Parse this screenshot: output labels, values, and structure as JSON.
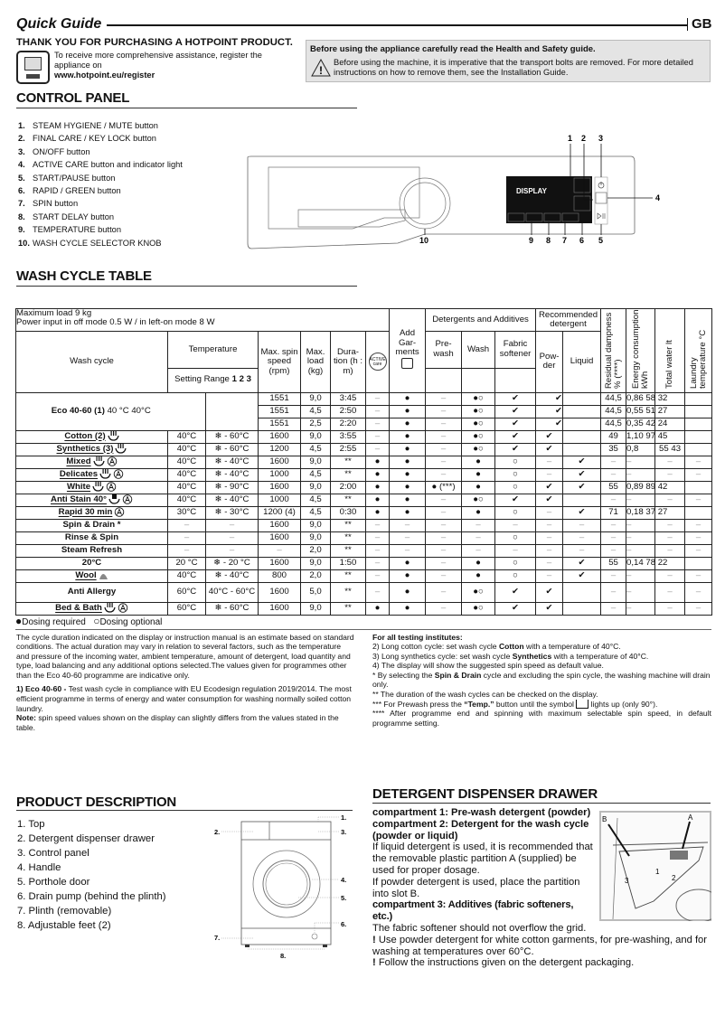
{
  "header": {
    "title": "Quick Guide",
    "lang": "GB"
  },
  "intro": {
    "thanks": "THANK YOU FOR PURCHASING A HOTPOINT PRODUCT.",
    "register_text": "To receive more comprehensive assistance, register the appliance on",
    "register_url": "www.hotpoint.eu/register"
  },
  "warning": {
    "title": "Before using the appliance carefully read the Health and Safety guide.",
    "text": "Before using the machine, it is imperative that the transport bolts are removed. For more detailed instructions on how to remove them, see the Installation Guide."
  },
  "control_panel": {
    "heading": "CONTROL PANEL",
    "items": [
      {
        "num": "1.",
        "label": "STEAM HYGIENE / MUTE button"
      },
      {
        "num": "2.",
        "label": "FINAL CARE / KEY LOCK button"
      },
      {
        "num": "3.",
        "label": "ON/OFF button"
      },
      {
        "num": "4.",
        "label": "ACTIVE CARE button and indicator light"
      },
      {
        "num": "5.",
        "label": "START/PAUSE button"
      },
      {
        "num": "6.",
        "label": "RAPID / GREEN button"
      },
      {
        "num": "7.",
        "label": "SPIN button"
      },
      {
        "num": "8.",
        "label": "START DELAY button"
      },
      {
        "num": "9.",
        "label": "TEMPERATURE button"
      },
      {
        "num": "10.",
        "label": "WASH CYCLE SELECTOR KNOB"
      }
    ],
    "display_label": "DISPLAY",
    "callouts": [
      "1",
      "2",
      "3",
      "4",
      "5",
      "6",
      "7",
      "8",
      "9",
      "10"
    ]
  },
  "wash_table": {
    "heading": "WASH CYCLE TABLE",
    "max_load": "Maximum load 9 kg",
    "power": "Power input in off  mode 0.5 W / in left-on mode 8 W",
    "headers": {
      "wash_cycle": "Wash cycle",
      "temperature": "Temperature",
      "setting_range": "Setting Range",
      "range_nums": "1 2 3",
      "spin": "Max. spin speed (rpm)",
      "load": "Max. load (kg)",
      "duration": "Dura- tion (h : m)",
      "active_care": "ACTIVE care",
      "add_garments": "Add Gar- ments",
      "detergents": "Detergents and Additives",
      "prewash": "Pre- wash",
      "wash": "Wash",
      "softener": "Fabric softener",
      "recommended": "Recommended detergent",
      "powder": "Pow- der",
      "liquid": "Liquid",
      "residual": "Residual dampness % (****)",
      "energy": "Energy consumption kWh",
      "water": "Total water lt",
      "laundry_temp": "Laundry temperature °C"
    },
    "eco": {
      "name": "Eco 40-60 (1)",
      "temps": "40 °C 40°C",
      "subrows": [
        [
          "1551",
          "9,0",
          "3:45",
          "–",
          "●",
          "–",
          "●○",
          "✔",
          "✔",
          "",
          "44,5",
          "0,86 58 32",
          "",
          ""
        ],
        [
          "1551",
          "4,5",
          "2:50",
          "–",
          "●",
          "–",
          "●○",
          "✔",
          "✔",
          "",
          "44,5",
          "0,55 51 27",
          "",
          ""
        ],
        [
          "1551",
          "2,5",
          "2:20",
          "–",
          "●",
          "–",
          "●○",
          "✔",
          "✔",
          "",
          "44,5",
          "0,35 42 24",
          "",
          ""
        ]
      ]
    },
    "rows": [
      {
        "name": "Cotton (2)",
        "icons": [
          "cotton-icon"
        ],
        "cells": [
          "40°C",
          "❄ - 60°C",
          "1600",
          "9,0",
          "3:55",
          "–",
          "●",
          "–",
          "●○",
          "✔",
          "✔",
          "",
          "49",
          "1,10 97 45",
          "",
          ""
        ]
      },
      {
        "name": "Synthetics (3)",
        "icons": [
          "synthetics-icon"
        ],
        "cells": [
          "40°C",
          "❄ - 60°C",
          "1200",
          "4,5",
          "2:55",
          "–",
          "●",
          "–",
          "●○",
          "✔",
          "✔",
          "",
          "35",
          "0,8",
          "55 43",
          ""
        ]
      },
      {
        "name": "Mixed",
        "icons": [
          "cotton-icon",
          "auto-icon"
        ],
        "cells": [
          "40°C",
          "❄ - 40°C",
          "1600",
          "9,0",
          "**",
          "●",
          "●",
          "–",
          "●",
          "○",
          "–",
          "✔",
          "–",
          "–",
          "–",
          "–"
        ]
      },
      {
        "name": "Delicates",
        "icons": [
          "cotton-icon",
          "auto-icon"
        ],
        "cells": [
          "40°C",
          "❄ - 40°C",
          "1000",
          "4,5",
          "**",
          "●",
          "●",
          "–",
          "●",
          "○",
          "–",
          "✔",
          "–",
          "–",
          "–",
          "–"
        ]
      },
      {
        "name": "White",
        "icons": [
          "cotton-icon",
          "auto-icon"
        ],
        "cells": [
          "40°C",
          "❄ - 90°C",
          "1600",
          "9,0",
          "2:00",
          "●",
          "●",
          "● (***)",
          "●",
          "○",
          "✔",
          "✔",
          "55",
          "0,89 89 42",
          "",
          ""
        ]
      },
      {
        "name": "Anti Stain 40°",
        "icons": [
          "stain-icon",
          "auto-icon"
        ],
        "cells": [
          "40°C",
          "❄ - 40°C",
          "1000",
          "4,5",
          "**",
          "●",
          "●",
          "–",
          "●○",
          "✔",
          "✔",
          "",
          "–",
          "–",
          "–",
          "–"
        ]
      },
      {
        "name": "Rapid 30 min",
        "icons": [
          "auto-icon"
        ],
        "cells": [
          "30°C",
          "❄ - 30°C",
          "1200 (4)",
          "4,5",
          "0:30",
          "●",
          "●",
          "–",
          "●",
          "○",
          "–",
          "✔",
          "71",
          "0,18 37 27",
          "",
          ""
        ]
      },
      {
        "name": "Spin & Drain *",
        "icons": [],
        "cells": [
          "–",
          "–",
          "1600",
          "9,0",
          "**",
          "–",
          "–",
          "–",
          "–",
          "–",
          "–",
          "–",
          "–",
          "–",
          "–",
          "–"
        ]
      },
      {
        "name": "Rinse & Spin",
        "icons": [],
        "cells": [
          "–",
          "–",
          "1600",
          "9,0",
          "**",
          "–",
          "–",
          "–",
          "–",
          "○",
          "–",
          "–",
          "–",
          "–",
          "–",
          "–"
        ]
      },
      {
        "name": "Steam Refresh",
        "icons": [],
        "cells": [
          "–",
          "–",
          "–",
          "2,0",
          "**",
          "–",
          "–",
          "–",
          "–",
          "–",
          "–",
          "–",
          "–",
          "–",
          "–",
          "–"
        ]
      },
      {
        "name": "20°C",
        "icons": [],
        "cells": [
          "20 °C",
          "❄ - 20 °C",
          "1600",
          "9,0",
          "1:50",
          "–",
          "●",
          "–",
          "●",
          "○",
          "–",
          "✔",
          "55",
          "0,14 78 22",
          "",
          ""
        ]
      },
      {
        "name": "Wool",
        "icons": [
          "wool-icon"
        ],
        "cells": [
          "40°C",
          "❄ - 40°C",
          "800",
          "2,0",
          "**",
          "–",
          "●",
          "–",
          "●",
          "○",
          "–",
          "✔",
          "–",
          "–",
          "–",
          "–"
        ]
      },
      {
        "name": "Anti Allergy",
        "icons": [],
        "cells": [
          "60°C",
          "40°C - 60°C",
          "1600",
          "5,0",
          "**",
          "–",
          "●",
          "–",
          "●○",
          "✔",
          "✔",
          "",
          "–",
          "–",
          "–",
          "–"
        ]
      },
      {
        "name": "Bed & Bath",
        "icons": [
          "cotton-icon",
          "auto-icon"
        ],
        "cells": [
          "60°C",
          "❄ - 60°C",
          "1600",
          "9,0",
          "**",
          "●",
          "●",
          "–",
          "●○",
          "✔",
          "✔",
          "",
          "–",
          "–",
          "–",
          "–"
        ]
      }
    ],
    "legend_required": "Dosing required",
    "legend_optional": "Dosing optional"
  },
  "notes_left": {
    "p1": "The cycle duration indicated on the display or instruction manual is an estimate based on standard conditions. The actual duration may vary in relation to several factors, such as the temperature and pressure of the incoming water, ambient temperature, amount of detergent, load quantity and type, load balancing and any additional options selected.The values given for programmes other than the Eco 40-60 programme are indicative only.",
    "eco_label": "1) Eco 40-60 -",
    "eco_text": " Test wash cycle in compliance with EU Ecodesign regulation 2019/2014. The most efficient programme in terms of energy and water consumption for washing normally soiled cotton laundry.",
    "note_label": "Note:",
    "note_text": " spin speed values shown on the display can slightly differs from the values stated in the table."
  },
  "notes_right": {
    "title": "For all testing institutes:",
    "n2a": "2)  Long cotton cycle: set wash cycle ",
    "n2b": "Cotton",
    "n2c": " with a temperature of 40°C.",
    "n3a": "3)  Long synthetics cycle: set wash cycle ",
    "n3b": "Synthetics",
    "n3c": " with a temperature of 40°C.",
    "n4": "4) The display will show the suggested spin speed as default value.",
    "s1a": "* By selecting the ",
    "s1b": "Spin & Drain",
    "s1c": " cycle and excluding the spin cycle, the washing machine will drain only.",
    "s2": "**  The duration of the wash cycles can be checked on the display.",
    "s3a": "*** For Prewash press the ",
    "s3b": "“Temp.”",
    "s3c": " button until the symbol ",
    "s3d": " lights up (only 90°).",
    "s4": "****  After programme end and spinning with maximum selectable spin speed, in default programme setting."
  },
  "product": {
    "heading": "PRODUCT DESCRIPTION",
    "items": [
      "1. Top",
      "2. Detergent dispenser drawer",
      "3. Control panel",
      "4. Handle",
      "5. Porthole door",
      "6. Drain pump (behind the plinth)",
      "7. Plinth (removable)",
      "8. Adjustable feet (2)"
    ],
    "callouts": [
      "1.",
      "2.",
      "3.",
      "4.",
      "5.",
      "6.",
      "7.",
      "8."
    ]
  },
  "drawer": {
    "heading": "DETERGENT DISPENSER DRAWER",
    "c1": "compartment 1: Pre-wash detergent (powder)",
    "c2": "compartment 2: Detergent for the wash cycle (powder or liquid)",
    "p1": "If liquid detergent is used, it is recommended that the removable plastic partition A (supplied) be used for proper dosage.",
    "p2": "If powder detergent is used, place the partition into slot B.",
    "c3": "compartment 3: Additives (fabric softeners, etc.)",
    "p3": "The fabric softener should not overflow the grid.",
    "w1": "Use powder detergent for white cotton garments, for pre-washing, and for washing at temperatures over 60°C.",
    "w2": "Follow the instructions given on the detergent packaging.",
    "img_labels": {
      "a": "A",
      "b": "B",
      "one": "1",
      "two": "2",
      "three": "3"
    }
  }
}
